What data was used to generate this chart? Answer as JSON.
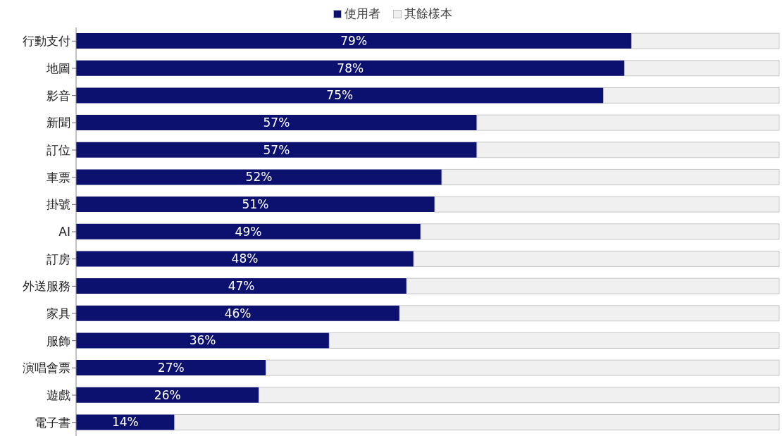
{
  "chart_data": {
    "type": "bar",
    "orientation": "horizontal",
    "stacked": true,
    "legend": "top",
    "grid": false,
    "categories": [
      "行動支付",
      "地圖",
      "影音",
      "新聞",
      "訂位",
      "車票",
      "掛號",
      "AI",
      "訂房",
      "外送服務",
      "家具",
      "服飾",
      "演唱會票",
      "遊戲",
      "電子書"
    ],
    "series": [
      {
        "name": "使用者",
        "color": "#0c1170",
        "values": [
          79,
          78,
          75,
          57,
          57,
          52,
          51,
          49,
          48,
          47,
          46,
          36,
          27,
          26,
          14
        ],
        "value_labels": [
          "79%",
          "78%",
          "75%",
          "57%",
          "57%",
          "52%",
          "51%",
          "49%",
          "48%",
          "47%",
          "46%",
          "36%",
          "27%",
          "26%",
          "14%"
        ]
      },
      {
        "name": "其餘樣本",
        "color": "#f0f0f0",
        "values": [
          21,
          22,
          25,
          43,
          43,
          48,
          49,
          51,
          52,
          53,
          54,
          64,
          73,
          74,
          86
        ]
      }
    ]
  }
}
